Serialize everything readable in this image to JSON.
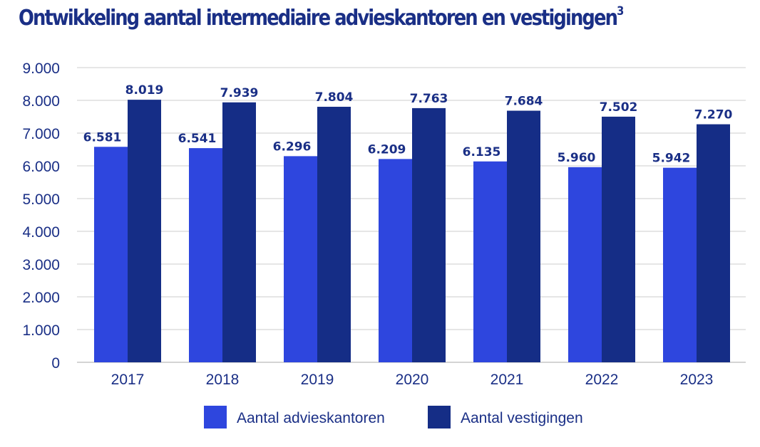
{
  "chart_data": {
    "type": "bar",
    "title": "Ontwikkeling aantal intermediaire advieskantoren en vestigingen",
    "title_superscript": "3",
    "categories": [
      "2017",
      "2018",
      "2019",
      "2020",
      "2021",
      "2022",
      "2023"
    ],
    "series": [
      {
        "name": "Aantal advieskantoren",
        "values": [
          6581,
          6541,
          6296,
          6209,
          6135,
          5960,
          5942
        ],
        "labels": [
          "6.581",
          "6.541",
          "6.296",
          "6.209",
          "6.135",
          "5.960",
          "5.942"
        ],
        "color": "#2e46de"
      },
      {
        "name": "Aantal vestigingen",
        "values": [
          8019,
          7939,
          7804,
          7763,
          7684,
          7502,
          7270
        ],
        "labels": [
          "8.019",
          "7.939",
          "7.804",
          "7.763",
          "7.684",
          "7.502",
          "7.270"
        ],
        "color": "#152d86"
      }
    ],
    "ylim": [
      0,
      9000
    ],
    "yticks": [
      0,
      1000,
      2000,
      3000,
      4000,
      5000,
      6000,
      7000,
      8000,
      9000
    ],
    "ytick_labels": [
      "0",
      "1.000",
      "2.000",
      "3.000",
      "4.000",
      "5.000",
      "6.000",
      "7.000",
      "8.000",
      "9.000"
    ],
    "xlabel": "",
    "ylabel": "",
    "grid": true,
    "legend_position": "bottom-center",
    "colors": {
      "title": "#1a2f86",
      "axis_text": "#1a2f86",
      "value_label": "#1a2f86",
      "grid": "#cccccc"
    }
  }
}
